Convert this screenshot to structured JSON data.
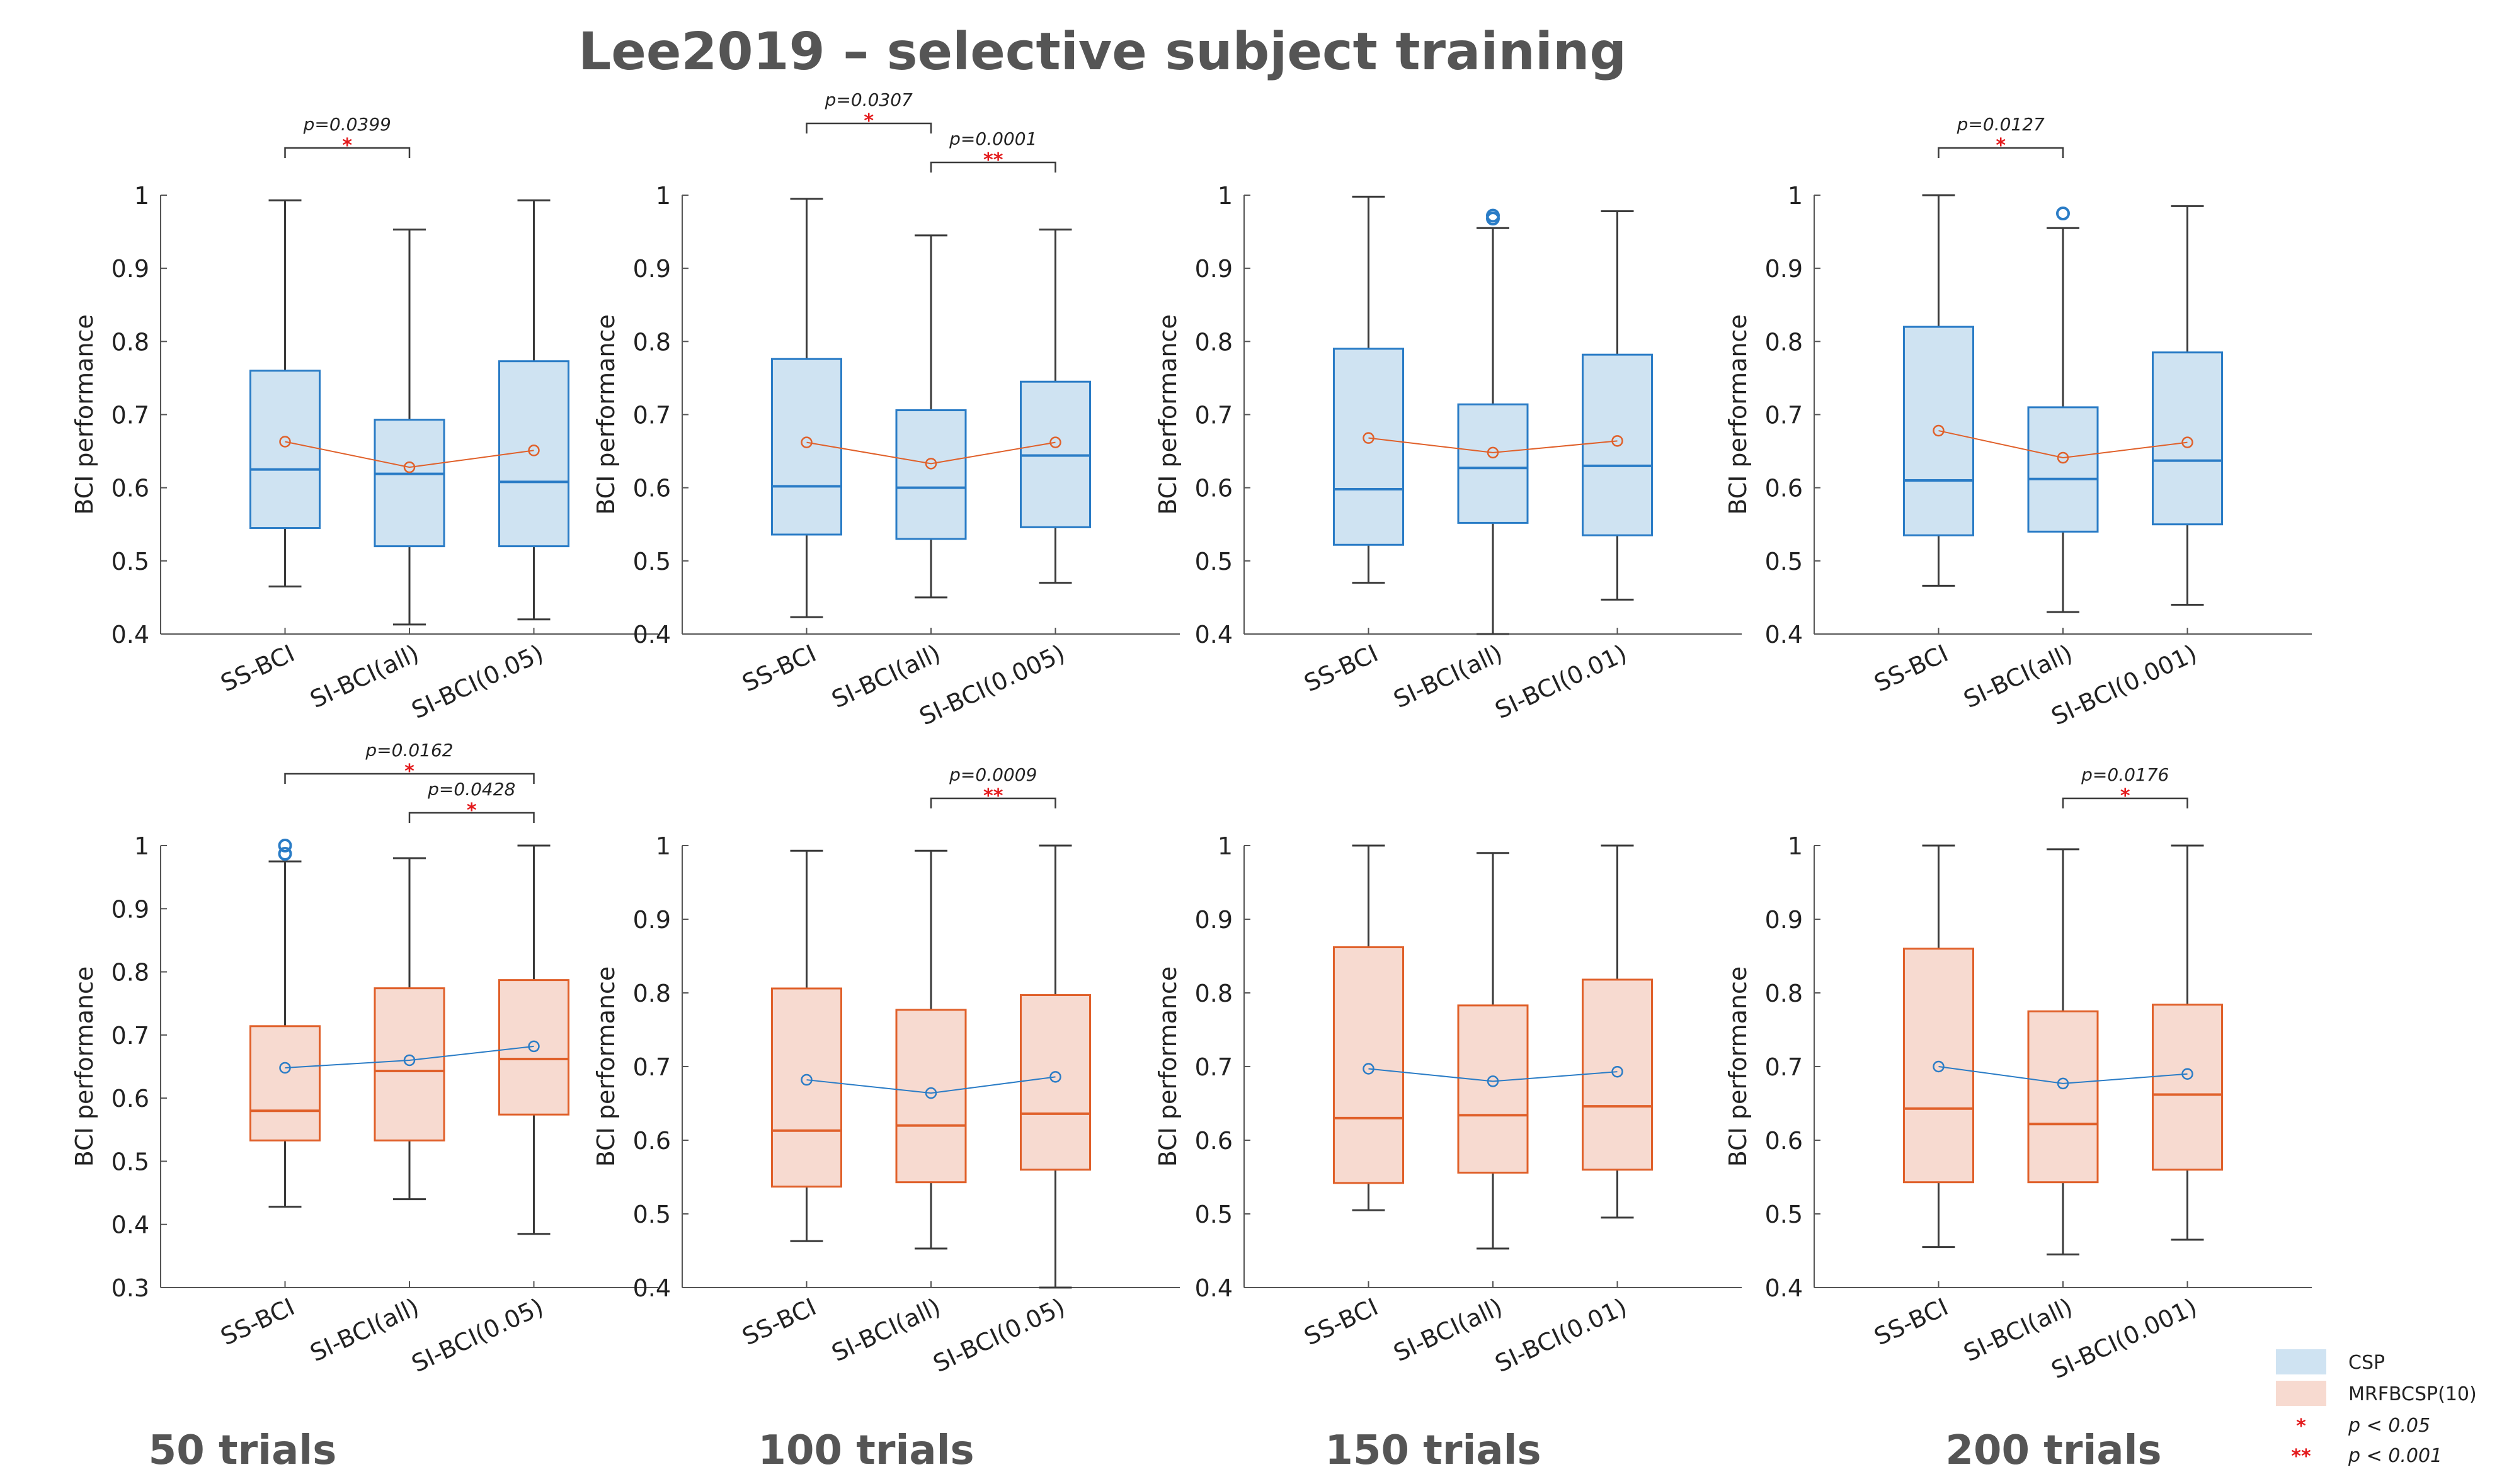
{
  "title": "Lee2019 – selective subject training",
  "colors": {
    "csp_fill": "#cfe3f2",
    "csp_edge": "#2a7cc6",
    "mrf_fill": "#f7dad0",
    "mrf_edge": "#e0602a",
    "whisker": "#3a3a3a",
    "axis": "#555555",
    "mean_line_csp": "#e0602a",
    "mean_line_mrf": "#2a7cc6",
    "sig": "#e31a1c",
    "text": "#222222",
    "title": "#555555"
  },
  "legend": [
    {
      "label": "CSP",
      "kind": "patch",
      "color": "#cfe3f2"
    },
    {
      "label": "MRFBCSP(10)",
      "kind": "patch",
      "color": "#f7dad0"
    },
    {
      "label": "p < 0.05",
      "kind": "stars",
      "stars": "*"
    },
    {
      "label": "p < 0.001",
      "kind": "stars",
      "stars": "**"
    }
  ],
  "column_labels": [
    "50 trials",
    "100 trials",
    "150 trials",
    "200 trials"
  ],
  "chart_data": [
    {
      "type": "box",
      "row": 0,
      "col": 0,
      "method": "CSP",
      "ylabel": "BCI performance",
      "ylim": [
        0.4,
        1.0
      ],
      "yticks": [
        0.4,
        0.5,
        0.6,
        0.7,
        0.8,
        0.9,
        1
      ],
      "ytick_labels": [
        "0.4",
        "0.5",
        "0.6",
        "0.7",
        "0.8",
        "0.9",
        "1"
      ],
      "categories": [
        "SS-BCI",
        "SI-BCI(all)",
        "SI-BCI(0.05)"
      ],
      "boxes": [
        {
          "min": 0.465,
          "q1": 0.545,
          "median": 0.625,
          "q3": 0.76,
          "max": 0.993,
          "mean": 0.663,
          "outliers": []
        },
        {
          "min": 0.413,
          "q1": 0.52,
          "median": 0.619,
          "q3": 0.693,
          "max": 0.953,
          "mean": 0.628,
          "outliers": []
        },
        {
          "min": 0.42,
          "q1": 0.52,
          "median": 0.608,
          "q3": 0.773,
          "max": 0.993,
          "mean": 0.651,
          "outliers": []
        }
      ],
      "significance": [
        {
          "from": 0,
          "to": 1,
          "p": "p=0.0399",
          "stars": "*"
        }
      ]
    },
    {
      "type": "box",
      "row": 0,
      "col": 1,
      "method": "CSP",
      "ylabel": "BCI performance",
      "ylim": [
        0.4,
        1.0
      ],
      "yticks": [
        0.4,
        0.5,
        0.6,
        0.7,
        0.8,
        0.9,
        1
      ],
      "ytick_labels": [
        "0.4",
        "0.5",
        "0.6",
        "0.7",
        "0.8",
        "0.9",
        "1"
      ],
      "categories": [
        "SS-BCI",
        "SI-BCI(all)",
        "SI-BCI(0.005)"
      ],
      "boxes": [
        {
          "min": 0.423,
          "q1": 0.536,
          "median": 0.602,
          "q3": 0.776,
          "max": 0.995,
          "mean": 0.662,
          "outliers": []
        },
        {
          "min": 0.45,
          "q1": 0.53,
          "median": 0.6,
          "q3": 0.706,
          "max": 0.945,
          "mean": 0.633,
          "outliers": []
        },
        {
          "min": 0.47,
          "q1": 0.546,
          "median": 0.644,
          "q3": 0.745,
          "max": 0.953,
          "mean": 0.662,
          "outliers": []
        }
      ],
      "significance": [
        {
          "from": 0,
          "to": 1,
          "p": "p=0.0307",
          "stars": "*"
        },
        {
          "from": 1,
          "to": 2,
          "p": "p=0.0001",
          "stars": "**"
        }
      ]
    },
    {
      "type": "box",
      "row": 0,
      "col": 2,
      "method": "CSP",
      "ylabel": "BCI performance",
      "ylim": [
        0.4,
        1.0
      ],
      "yticks": [
        0.4,
        0.5,
        0.6,
        0.7,
        0.8,
        0.9,
        1
      ],
      "ytick_labels": [
        "0.4",
        "0.5",
        "0.6",
        "0.7",
        "0.8",
        "0.9",
        "1"
      ],
      "categories": [
        "SS-BCI",
        "SI-BCI(all)",
        "SI-BCI(0.01)"
      ],
      "boxes": [
        {
          "min": 0.47,
          "q1": 0.522,
          "median": 0.598,
          "q3": 0.79,
          "max": 0.998,
          "mean": 0.668,
          "outliers": []
        },
        {
          "min": 0.4,
          "q1": 0.552,
          "median": 0.627,
          "q3": 0.714,
          "max": 0.955,
          "mean": 0.648,
          "outliers": [
            0.968,
            0.972
          ]
        },
        {
          "min": 0.447,
          "q1": 0.535,
          "median": 0.63,
          "q3": 0.782,
          "max": 0.978,
          "mean": 0.664,
          "outliers": []
        }
      ],
      "significance": []
    },
    {
      "type": "box",
      "row": 0,
      "col": 3,
      "method": "CSP",
      "ylabel": "BCI performance",
      "ylim": [
        0.4,
        1.0
      ],
      "yticks": [
        0.4,
        0.5,
        0.6,
        0.7,
        0.8,
        0.9,
        1
      ],
      "ytick_labels": [
        "0.4",
        "0.5",
        "0.6",
        "0.7",
        "0.8",
        "0.9",
        "1"
      ],
      "categories": [
        "SS-BCI",
        "SI-BCI(all)",
        "SI-BCI(0.001)"
      ],
      "boxes": [
        {
          "min": 0.466,
          "q1": 0.535,
          "median": 0.61,
          "q3": 0.82,
          "max": 1.0,
          "mean": 0.678,
          "outliers": []
        },
        {
          "min": 0.43,
          "q1": 0.54,
          "median": 0.612,
          "q3": 0.71,
          "max": 0.955,
          "mean": 0.641,
          "outliers": [
            0.975
          ]
        },
        {
          "min": 0.44,
          "q1": 0.55,
          "median": 0.637,
          "q3": 0.785,
          "max": 0.985,
          "mean": 0.662,
          "outliers": []
        }
      ],
      "significance": [
        {
          "from": 0,
          "to": 1,
          "p": "p=0.0127",
          "stars": "*"
        }
      ]
    },
    {
      "type": "box",
      "row": 1,
      "col": 0,
      "method": "MRFBCSP(10)",
      "ylabel": "BCI performance",
      "ylim": [
        0.3,
        1.0
      ],
      "yticks": [
        0.3,
        0.4,
        0.5,
        0.6,
        0.7,
        0.8,
        0.9,
        1
      ],
      "ytick_labels": [
        "0.3",
        "0.4",
        "0.5",
        "0.6",
        "0.7",
        "0.8",
        "0.9",
        "1"
      ],
      "categories": [
        "SS-BCI",
        "SI-BCI(all)",
        "SI-BCI(0.05)"
      ],
      "boxes": [
        {
          "min": 0.428,
          "q1": 0.533,
          "median": 0.58,
          "q3": 0.714,
          "max": 0.975,
          "mean": 0.648,
          "outliers": [
            0.987,
            1.0
          ]
        },
        {
          "min": 0.44,
          "q1": 0.533,
          "median": 0.643,
          "q3": 0.774,
          "max": 0.98,
          "mean": 0.66,
          "outliers": []
        },
        {
          "min": 0.385,
          "q1": 0.574,
          "median": 0.662,
          "q3": 0.787,
          "max": 1.0,
          "mean": 0.682,
          "outliers": []
        }
      ],
      "significance": [
        {
          "from": 0,
          "to": 2,
          "p": "p=0.0162",
          "stars": "*"
        },
        {
          "from": 1,
          "to": 2,
          "p": "p=0.0428",
          "stars": "*"
        }
      ]
    },
    {
      "type": "box",
      "row": 1,
      "col": 1,
      "method": "MRFBCSP(10)",
      "ylabel": "BCI performance",
      "ylim": [
        0.4,
        1.0
      ],
      "yticks": [
        0.4,
        0.5,
        0.6,
        0.7,
        0.8,
        0.9,
        1
      ],
      "ytick_labels": [
        "0.4",
        "0.5",
        "0.6",
        "0.7",
        "0.8",
        "0.9",
        "1"
      ],
      "categories": [
        "SS-BCI",
        "SI-BCI(all)",
        "SI-BCI(0.05)"
      ],
      "boxes": [
        {
          "min": 0.463,
          "q1": 0.537,
          "median": 0.613,
          "q3": 0.806,
          "max": 0.993,
          "mean": 0.682,
          "outliers": []
        },
        {
          "min": 0.453,
          "q1": 0.543,
          "median": 0.62,
          "q3": 0.777,
          "max": 0.993,
          "mean": 0.664,
          "outliers": []
        },
        {
          "min": 0.4,
          "q1": 0.56,
          "median": 0.636,
          "q3": 0.797,
          "max": 1.0,
          "mean": 0.686,
          "outliers": []
        }
      ],
      "significance": [
        {
          "from": 1,
          "to": 2,
          "p": "p=0.0009",
          "stars": "**"
        }
      ]
    },
    {
      "type": "box",
      "row": 1,
      "col": 2,
      "method": "MRFBCSP(10)",
      "ylabel": "BCI performance",
      "ylim": [
        0.4,
        1.0
      ],
      "yticks": [
        0.4,
        0.5,
        0.6,
        0.7,
        0.8,
        0.9,
        1
      ],
      "ytick_labels": [
        "0.4",
        "0.5",
        "0.6",
        "0.7",
        "0.8",
        "0.9",
        "1"
      ],
      "categories": [
        "SS-BCI",
        "SI-BCI(all)",
        "SI-BCI(0.01)"
      ],
      "boxes": [
        {
          "min": 0.505,
          "q1": 0.542,
          "median": 0.63,
          "q3": 0.862,
          "max": 1.0,
          "mean": 0.697,
          "outliers": []
        },
        {
          "min": 0.453,
          "q1": 0.556,
          "median": 0.634,
          "q3": 0.783,
          "max": 0.99,
          "mean": 0.68,
          "outliers": []
        },
        {
          "min": 0.495,
          "q1": 0.56,
          "median": 0.646,
          "q3": 0.818,
          "max": 1.0,
          "mean": 0.693,
          "outliers": []
        }
      ],
      "significance": []
    },
    {
      "type": "box",
      "row": 1,
      "col": 3,
      "method": "MRFBCSP(10)",
      "ylabel": "BCI performance",
      "ylim": [
        0.4,
        1.0
      ],
      "yticks": [
        0.4,
        0.5,
        0.6,
        0.7,
        0.8,
        0.9,
        1
      ],
      "ytick_labels": [
        "0.4",
        "0.5",
        "0.6",
        "0.7",
        "0.8",
        "0.9",
        "1"
      ],
      "categories": [
        "SS-BCI",
        "SI-BCI(all)",
        "SI-BCI(0.001)"
      ],
      "boxes": [
        {
          "min": 0.455,
          "q1": 0.543,
          "median": 0.643,
          "q3": 0.86,
          "max": 1.0,
          "mean": 0.7,
          "outliers": []
        },
        {
          "min": 0.445,
          "q1": 0.543,
          "median": 0.622,
          "q3": 0.775,
          "max": 0.995,
          "mean": 0.677,
          "outliers": []
        },
        {
          "min": 0.465,
          "q1": 0.56,
          "median": 0.662,
          "q3": 0.784,
          "max": 1.0,
          "mean": 0.69,
          "outliers": []
        }
      ],
      "significance": [
        {
          "from": 1,
          "to": 2,
          "p": "p=0.0176",
          "stars": "*"
        }
      ]
    }
  ]
}
